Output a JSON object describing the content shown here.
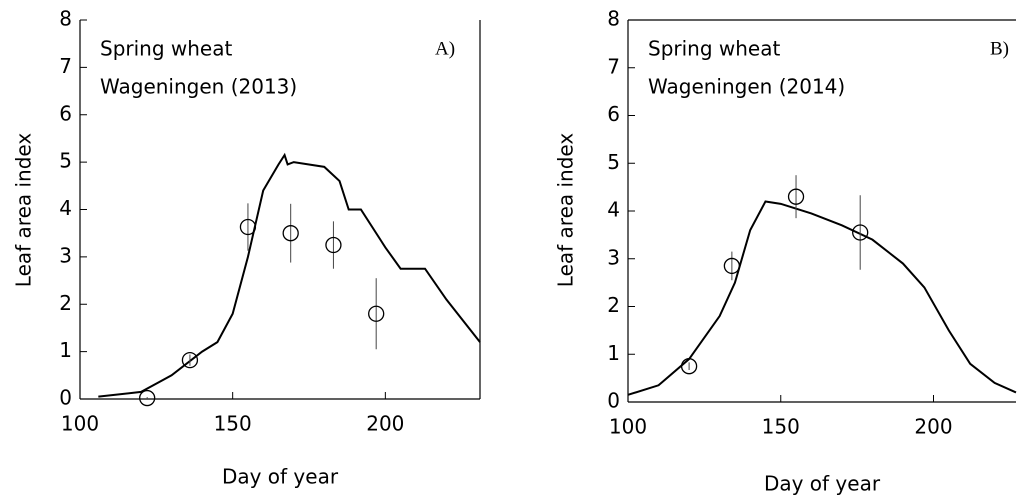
{
  "chart_data": [
    {
      "type": "line",
      "annotations": [
        "Spring wheat",
        "Wageningen (2013)"
      ],
      "panel_label": "A)",
      "xlabel": "Day of year",
      "ylabel": "Leaf area index",
      "xlim": [
        100,
        231
      ],
      "xticks": [
        100,
        150,
        200
      ],
      "ylim": [
        0,
        8
      ],
      "yticks": [
        0,
        1,
        2,
        3,
        4,
        5,
        6,
        7,
        8
      ],
      "color": "#000000",
      "x": [
        106,
        120,
        130,
        140,
        145,
        150,
        155,
        160,
        165,
        167,
        168,
        170,
        180,
        185,
        188,
        192,
        200,
        205,
        213,
        220,
        231
      ],
      "values": [
        0.05,
        0.15,
        0.5,
        1.0,
        1.2,
        1.8,
        3.0,
        4.4,
        4.95,
        5.15,
        4.95,
        5.0,
        4.9,
        4.6,
        4.0,
        4.0,
        3.2,
        2.75,
        2.75,
        2.1,
        1.2
      ],
      "observed": {
        "x": [
          122,
          136,
          155,
          169,
          183,
          197
        ],
        "values": [
          0.02,
          0.82,
          3.63,
          3.5,
          3.25,
          1.8
        ],
        "errors": [
          0.02,
          0.12,
          0.5,
          0.62,
          0.5,
          0.75
        ]
      }
    },
    {
      "type": "line",
      "annotations": [
        "Spring wheat",
        "Wageningen (2014)"
      ],
      "panel_label": "B)",
      "xlabel": "Day of year",
      "ylabel": "Leaf area index",
      "xlim": [
        100,
        227
      ],
      "xticks": [
        100,
        150,
        200
      ],
      "ylim": [
        0,
        8
      ],
      "yticks": [
        0,
        1,
        2,
        3,
        4,
        5,
        6,
        7,
        8
      ],
      "color": "#000000",
      "x": [
        100,
        110,
        120,
        130,
        135,
        140,
        145,
        150,
        160,
        170,
        180,
        190,
        197,
        205,
        212,
        220,
        227
      ],
      "values": [
        0.15,
        0.35,
        0.9,
        1.8,
        2.5,
        3.6,
        4.2,
        4.15,
        3.95,
        3.7,
        3.4,
        2.9,
        2.4,
        1.5,
        0.8,
        0.4,
        0.2
      ],
      "observed": {
        "x": [
          120,
          134,
          155,
          176
        ],
        "values": [
          0.75,
          2.85,
          4.3,
          3.55
        ],
        "errors": [
          0.08,
          0.3,
          0.45,
          0.78
        ]
      }
    }
  ]
}
